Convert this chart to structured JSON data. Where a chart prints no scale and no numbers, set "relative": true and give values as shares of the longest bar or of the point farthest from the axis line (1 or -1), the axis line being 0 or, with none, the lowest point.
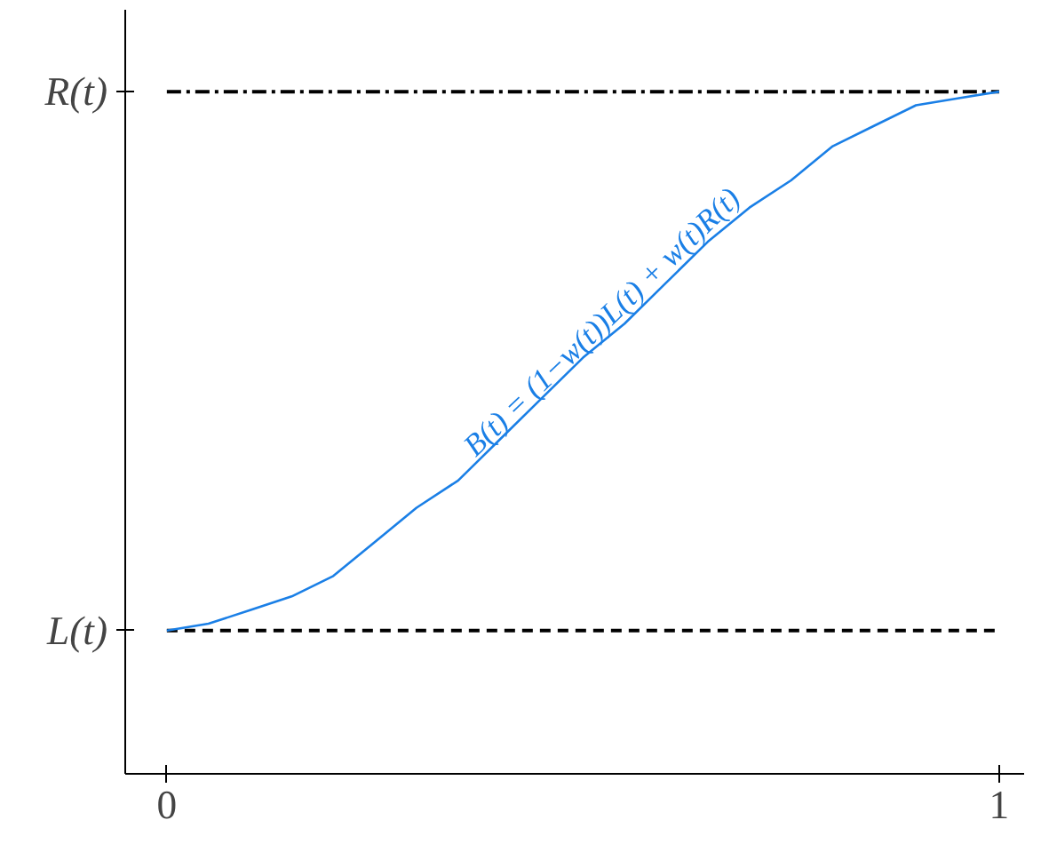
{
  "chart_data": {
    "type": "line",
    "relative": true,
    "x": [
      0,
      0.05,
      0.1,
      0.15,
      0.2,
      0.25,
      0.3,
      0.35,
      0.4,
      0.45,
      0.5,
      0.55,
      0.6,
      0.65,
      0.7,
      0.75,
      0.8,
      0.85,
      0.9,
      0.95,
      1
    ],
    "series": [
      {
        "color": "#1a7fe6",
        "values": [
          0.21,
          0.22,
          0.24,
          0.26,
          0.29,
          0.34,
          0.39,
          0.43,
          0.49,
          0.55,
          0.61,
          0.66,
          0.72,
          0.78,
          0.83,
          0.87,
          0.92,
          0.95,
          0.98,
          0.99,
          1
        ]
      }
    ],
    "xlim": [
      -0.05,
      1.03
    ],
    "xticks": [
      0,
      1
    ],
    "ref_lines": [
      {
        "axis": "y",
        "value": 0.21,
        "label": "L(t)",
        "line_style": "dashed",
        "color": "#000000"
      },
      {
        "axis": "y",
        "value": 1,
        "label": "R(t)",
        "line_style": "dashdot",
        "color": "#000000"
      }
    ],
    "annotations": [
      "B(t) = (1−w(t))L(t) + w(t)R(t)"
    ],
    "grid": false,
    "marker": "none",
    "line_style": "solid"
  }
}
